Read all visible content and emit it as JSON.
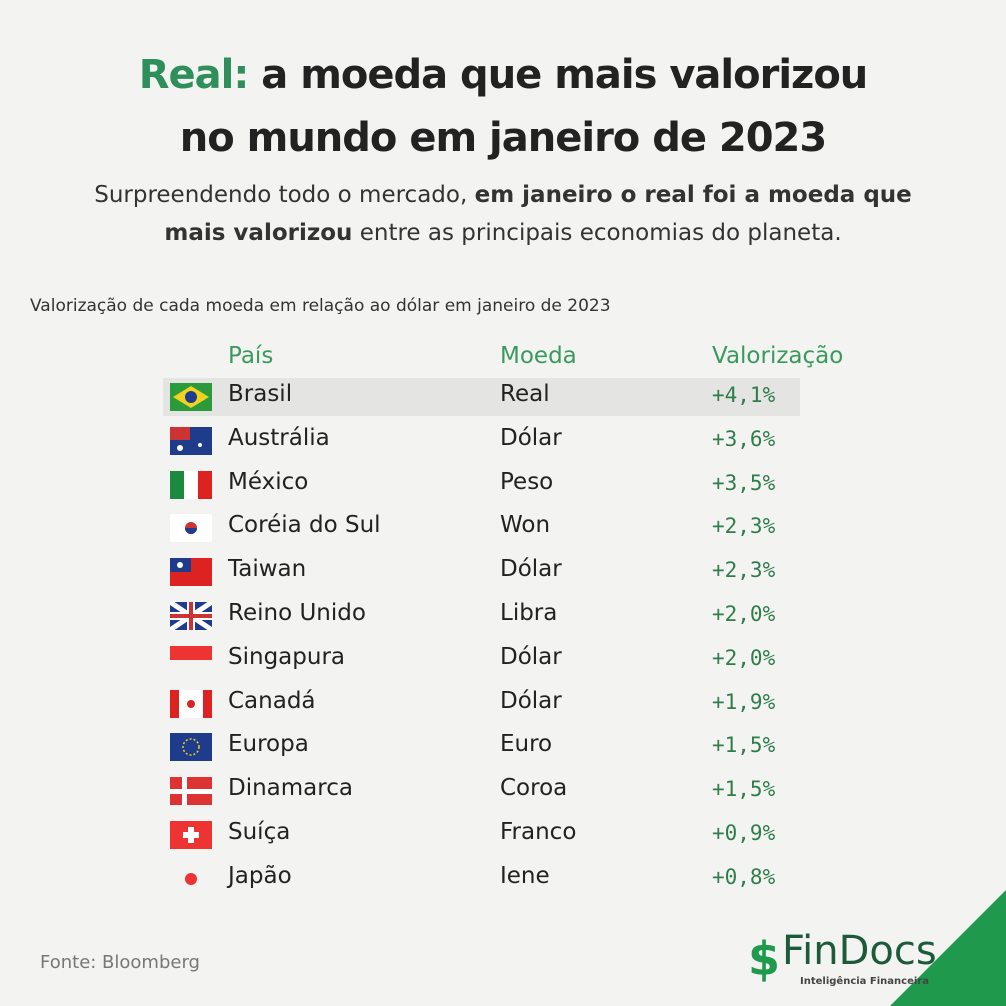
{
  "header": {
    "title_highlight": "Real:",
    "title_line1": "a moeda que mais valorizou",
    "title_line2": "no mundo em janeiro de 2023",
    "subtitle": [
      "Surpreendendo todo o mercado, ",
      "em janeiro o real foi a moeda que",
      "mais valorizou",
      " entre as principais economias do planeta."
    ]
  },
  "table": {
    "caption": "Valorização de cada moeda em relação ao dólar em janeiro de 2023",
    "columns": [
      "País",
      "Moeda",
      "Valorização"
    ],
    "rows": [
      [
        "Brasil",
        "Real",
        "+4,1%"
      ],
      [
        "Austrália",
        "Dólar",
        "+3,6%"
      ],
      [
        "México",
        "Peso",
        "+3,5%"
      ],
      [
        "Coréia do Sul",
        "Won",
        "+2,3%"
      ],
      [
        "Taiwan",
        "Dólar",
        "+2,3%"
      ],
      [
        "Reino Unido",
        "Libra",
        "+2,0%"
      ],
      [
        "Singapura",
        "Dólar",
        "+2,0%"
      ],
      [
        "Canadá",
        "Dólar",
        "+1,9%"
      ],
      [
        "Europa",
        "Euro",
        "+1,5%"
      ],
      [
        "Dinamarca",
        "Coroa",
        "+1,5%"
      ],
      [
        "Suíça",
        "Franco",
        "+0,9%"
      ],
      [
        "Japão",
        "Iene",
        "+0,8%"
      ]
    ]
  },
  "footer": {
    "source": "Fonte: Bloomberg",
    "logo": "FinDocs",
    "tagline": "Inteligência Financeira"
  }
}
